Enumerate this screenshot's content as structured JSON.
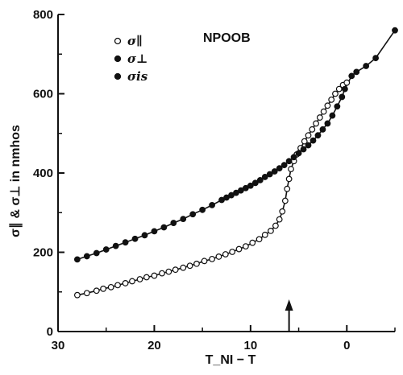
{
  "chart_data": {
    "type": "scatter",
    "title": "NPOOB",
    "xlabel": "T_NI − T",
    "ylabel": "σ∥ & σ⊥ in nmhos",
    "xlim": [
      30,
      -5
    ],
    "ylim": [
      0,
      800
    ],
    "x_ticks": [
      30,
      20,
      10,
      0
    ],
    "y_ticks": [
      0,
      200,
      400,
      600,
      800
    ],
    "x_reversed": true,
    "grid": false,
    "legend_position": "top-left",
    "annotation": {
      "type": "arrow",
      "x": 6,
      "direction": "up"
    },
    "series": [
      {
        "name": "σ∥",
        "marker": "open-circle",
        "points": [
          [
            28,
            92
          ],
          [
            27,
            97
          ],
          [
            26,
            103
          ],
          [
            25.3,
            108
          ],
          [
            24.5,
            112
          ],
          [
            23.8,
            117
          ],
          [
            23,
            122
          ],
          [
            22.3,
            127
          ],
          [
            21.5,
            132
          ],
          [
            20.8,
            137
          ],
          [
            20,
            141
          ],
          [
            19.2,
            147
          ],
          [
            18.5,
            151
          ],
          [
            17.8,
            156
          ],
          [
            17,
            161
          ],
          [
            16.3,
            166
          ],
          [
            15.6,
            171
          ],
          [
            14.8,
            178
          ],
          [
            14,
            183
          ],
          [
            13.3,
            189
          ],
          [
            12.6,
            195
          ],
          [
            11.9,
            201
          ],
          [
            11.2,
            208
          ],
          [
            10.5,
            215
          ],
          [
            9.8,
            224
          ],
          [
            9.1,
            233
          ],
          [
            8.5,
            244
          ],
          [
            7.9,
            254
          ],
          [
            7.4,
            267
          ],
          [
            7,
            283
          ],
          [
            6.7,
            303
          ],
          [
            6.4,
            330
          ],
          [
            6.2,
            360
          ],
          [
            6,
            385
          ],
          [
            5.8,
            410
          ],
          [
            5.5,
            430
          ],
          [
            5.2,
            447
          ],
          [
            4.8,
            463
          ],
          [
            4.4,
            480
          ],
          [
            4,
            495
          ],
          [
            3.6,
            510
          ],
          [
            3.2,
            525
          ],
          [
            2.8,
            540
          ],
          [
            2.4,
            555
          ],
          [
            2,
            570
          ],
          [
            1.6,
            585
          ],
          [
            1.2,
            600
          ],
          [
            0.8,
            612
          ],
          [
            0.4,
            622
          ],
          [
            0,
            628
          ]
        ]
      },
      {
        "name": "σ⊥",
        "marker": "filled-circle",
        "points": [
          [
            28,
            182
          ],
          [
            27,
            190
          ],
          [
            26,
            198
          ],
          [
            25,
            207
          ],
          [
            24,
            216
          ],
          [
            23,
            225
          ],
          [
            22,
            234
          ],
          [
            21,
            243
          ],
          [
            20,
            253
          ],
          [
            19,
            263
          ],
          [
            18,
            274
          ],
          [
            17,
            284
          ],
          [
            16,
            296
          ],
          [
            15,
            307
          ],
          [
            14,
            319
          ],
          [
            13,
            332
          ],
          [
            12.5,
            338
          ],
          [
            12,
            344
          ],
          [
            11.5,
            350
          ],
          [
            11,
            356
          ],
          [
            10.5,
            362
          ],
          [
            10,
            368
          ],
          [
            9.5,
            375
          ],
          [
            9,
            382
          ],
          [
            8.5,
            390
          ],
          [
            8,
            397
          ],
          [
            7.5,
            404
          ],
          [
            7,
            412
          ],
          [
            6.5,
            420
          ],
          [
            6,
            430
          ],
          [
            5.5,
            440
          ],
          [
            5,
            450
          ],
          [
            4.5,
            460
          ],
          [
            4,
            470
          ],
          [
            3.5,
            482
          ],
          [
            3,
            495
          ],
          [
            2.5,
            510
          ],
          [
            2,
            525
          ],
          [
            1.5,
            545
          ],
          [
            1,
            568
          ],
          [
            0.5,
            592
          ],
          [
            0.2,
            612
          ]
        ]
      },
      {
        "name": "σis",
        "marker": "filled-circle",
        "points": [
          [
            -0.5,
            645
          ],
          [
            -1,
            655
          ],
          [
            -2,
            670
          ],
          [
            -3,
            690
          ],
          [
            -5,
            760
          ]
        ]
      }
    ]
  }
}
